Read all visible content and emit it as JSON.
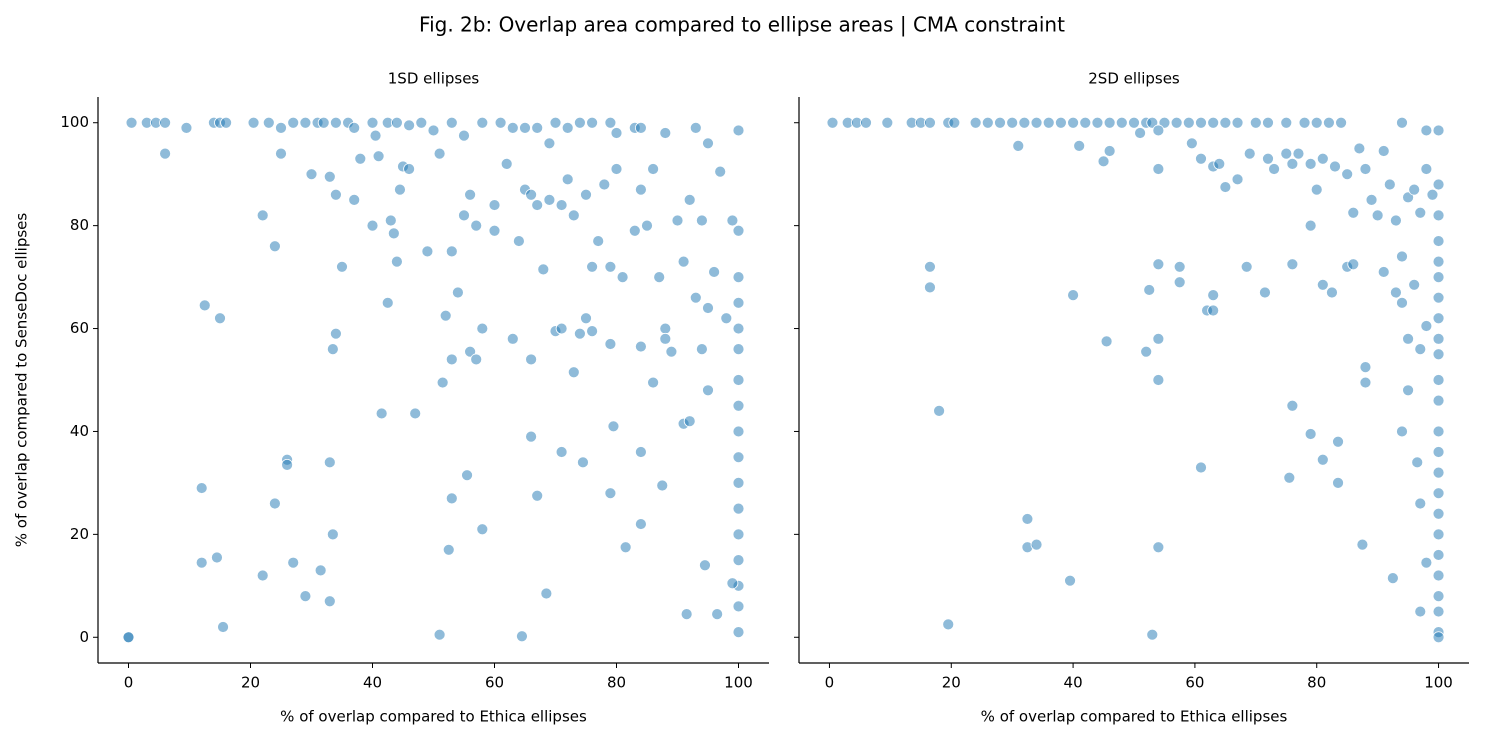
{
  "title": "Fig. 2b: Overlap area compared to ellipse areas | CMA constraint",
  "chart_data": [
    {
      "type": "scatter",
      "title": "1SD ellipses",
      "xlabel": "% of overlap compared to Ethica ellipses",
      "ylabel": "% of overlap compared to SenseDoc ellipses",
      "color": "#1f77b4",
      "xlim": [
        -5,
        105
      ],
      "ylim": [
        -5,
        105
      ],
      "xticks": [
        0,
        20,
        40,
        60,
        80,
        100
      ],
      "yticks": [
        0,
        20,
        40,
        60,
        80,
        100
      ],
      "ytick_labels": true,
      "x": [
        0,
        0,
        0.5,
        3,
        4.5,
        6,
        6,
        9.5,
        14,
        15,
        16,
        20.5,
        23,
        25,
        25,
        27,
        29,
        31,
        32,
        34,
        36,
        37,
        40,
        40.5,
        42.5,
        44,
        46,
        48,
        50,
        53,
        55,
        58,
        61,
        63,
        65,
        67,
        69,
        70,
        72,
        74,
        76,
        79,
        80,
        83,
        84,
        88,
        93,
        95,
        100,
        22,
        24,
        30,
        33,
        34,
        35,
        37,
        38,
        40,
        41,
        43,
        43.5,
        44,
        44.5,
        45,
        46,
        49,
        51,
        52,
        53,
        54,
        55,
        56,
        57,
        60,
        60,
        62,
        64,
        65,
        66,
        67,
        68,
        69,
        71,
        72,
        73,
        75,
        75,
        76,
        77,
        78,
        79,
        80,
        81,
        83,
        84,
        85,
        86,
        87,
        88,
        89,
        90,
        91,
        92,
        93,
        94,
        95,
        96,
        97,
        98,
        99,
        100,
        100,
        100,
        100,
        100,
        100,
        100,
        100,
        100,
        100,
        100,
        100,
        100,
        100,
        100,
        100,
        12.5,
        15,
        34,
        33.5,
        42.5,
        53,
        56,
        57,
        58,
        63,
        66,
        70,
        71,
        73,
        74,
        76,
        79,
        84,
        86,
        88,
        94,
        95,
        41.5,
        47,
        51.5,
        26,
        26,
        33,
        33.5,
        12,
        24,
        53,
        55.5,
        58,
        66,
        67,
        71,
        74.5,
        79.5,
        79,
        84,
        87.5,
        91,
        92,
        12,
        14.5,
        22,
        27,
        29,
        31.5,
        33,
        52.5,
        68.5,
        81.5,
        84,
        94.5,
        99,
        15.5,
        51,
        64.5,
        91.5,
        96.5
      ],
      "values": [
        0,
        0,
        100,
        100,
        100,
        100,
        94,
        99,
        100,
        100,
        100,
        100,
        100,
        99,
        94,
        100,
        100,
        100,
        100,
        100,
        100,
        99,
        100,
        97.5,
        100,
        100,
        99.5,
        100,
        98.5,
        100,
        97.5,
        100,
        100,
        99,
        99,
        99,
        96,
        100,
        99,
        100,
        100,
        100,
        98,
        99,
        99,
        98,
        99,
        96,
        98.5,
        82,
        76,
        90,
        89.5,
        86,
        72,
        85,
        93,
        80,
        93.5,
        81,
        78.5,
        73,
        87,
        91.5,
        91,
        75,
        94,
        62.5,
        75,
        67,
        82,
        86,
        80,
        84,
        79,
        92,
        77,
        87,
        86,
        84,
        71.5,
        85,
        84,
        89,
        82,
        86,
        62,
        72,
        77,
        88,
        72,
        91,
        70,
        79,
        87,
        80,
        91,
        70,
        60,
        55.5,
        81,
        73,
        85,
        66,
        81,
        64,
        71,
        90.5,
        62,
        81,
        79,
        70,
        65,
        60,
        56,
        50,
        45,
        40,
        35,
        30,
        25,
        20,
        15,
        10,
        6,
        1,
        64.5,
        62,
        59,
        56,
        65,
        54,
        55.5,
        54,
        60,
        58,
        54,
        59.5,
        60,
        51.5,
        59,
        59.5,
        57,
        56.5,
        49.5,
        58,
        56,
        48,
        43.5,
        43.5,
        49.5,
        34.5,
        33.5,
        34,
        20,
        29,
        26,
        27,
        31.5,
        21,
        39,
        27.5,
        36,
        34,
        41,
        28,
        36,
        29.5,
        41.5,
        42,
        14.5,
        15.5,
        12,
        14.5,
        8,
        13,
        7,
        17,
        8.5,
        17.5,
        22,
        14,
        10.5,
        2,
        0.5,
        0.2,
        4.5,
        4.5
      ]
    },
    {
      "type": "scatter",
      "title": "2SD ellipses",
      "xlabel": "% of overlap compared to Ethica ellipses",
      "color": "#1f77b4",
      "xlim": [
        -5,
        105
      ],
      "ylim": [
        -5,
        105
      ],
      "xticks": [
        0,
        20,
        40,
        60,
        80,
        100
      ],
      "yticks": [
        0,
        20,
        40,
        60,
        80,
        100
      ],
      "ytick_labels": false,
      "x": [
        0.5,
        3,
        4.5,
        6,
        9.5,
        13.5,
        15,
        16.5,
        19.5,
        20.5,
        24,
        26,
        28,
        30,
        32,
        34,
        36,
        38,
        40,
        42,
        44,
        46,
        48,
        50,
        52,
        53,
        55,
        57,
        59,
        61,
        63,
        65,
        67,
        70,
        72,
        75,
        78,
        80,
        82,
        84,
        94,
        98,
        100,
        31,
        41,
        45,
        46,
        51,
        54,
        54,
        59.5,
        61,
        63,
        64,
        65,
        67,
        69,
        72,
        73,
        75,
        76,
        77,
        79,
        80,
        81,
        83,
        85,
        86,
        87,
        88,
        89,
        90,
        91,
        92,
        93,
        94,
        95,
        96,
        97,
        98,
        99,
        100,
        16.5,
        16.5,
        40,
        45.5,
        52.5,
        52,
        54,
        54,
        57.5,
        57.5,
        62,
        63,
        63,
        68.5,
        71.5,
        76,
        79,
        81,
        82.5,
        85,
        86,
        88,
        88,
        91,
        93,
        94,
        95,
        96,
        97,
        98,
        100,
        100,
        100,
        100,
        100,
        100,
        100,
        100,
        100,
        100,
        100,
        100,
        100,
        100,
        100,
        100,
        100,
        100,
        100,
        100,
        100,
        100,
        18,
        54,
        76,
        79,
        81,
        83.5,
        61,
        75.5,
        83.5,
        94,
        95,
        96.5,
        97,
        98,
        32.5,
        32.5,
        34,
        39.5,
        54,
        87.5,
        92.5,
        19.5,
        53,
        97
      ],
      "values": [
        100,
        100,
        100,
        100,
        100,
        100,
        100,
        100,
        100,
        100,
        100,
        100,
        100,
        100,
        100,
        100,
        100,
        100,
        100,
        100,
        100,
        100,
        100,
        100,
        100,
        100,
        100,
        100,
        100,
        100,
        100,
        100,
        100,
        100,
        100,
        100,
        100,
        100,
        100,
        100,
        100,
        98.5,
        98.5,
        95.5,
        95.5,
        92.5,
        94.5,
        98,
        98.5,
        91,
        96,
        93,
        91.5,
        92,
        87.5,
        89,
        94,
        93,
        91,
        94,
        92,
        94,
        92,
        87,
        93,
        91.5,
        90,
        82.5,
        95,
        91,
        85,
        82,
        94.5,
        88,
        81,
        74,
        85.5,
        87,
        82.5,
        91,
        86,
        88,
        72,
        68,
        66.5,
        57.5,
        67.5,
        55.5,
        72.5,
        58,
        72,
        69,
        63.5,
        66.5,
        63.5,
        72,
        67,
        72.5,
        80,
        68.5,
        67,
        72,
        72.5,
        52.5,
        49.5,
        71,
        67,
        65,
        58,
        68.5,
        56,
        60.5,
        82,
        77,
        73,
        70,
        66,
        62,
        58,
        55,
        50,
        46,
        40,
        36,
        32,
        28,
        24,
        20,
        16,
        12,
        8,
        5,
        1,
        0,
        44,
        50,
        45,
        39.5,
        34.5,
        38,
        33,
        31,
        30,
        40,
        48,
        34,
        26,
        14.5,
        23,
        17.5,
        18,
        11,
        17.5,
        18,
        11.5,
        2.5,
        0.5,
        5
      ]
    }
  ]
}
